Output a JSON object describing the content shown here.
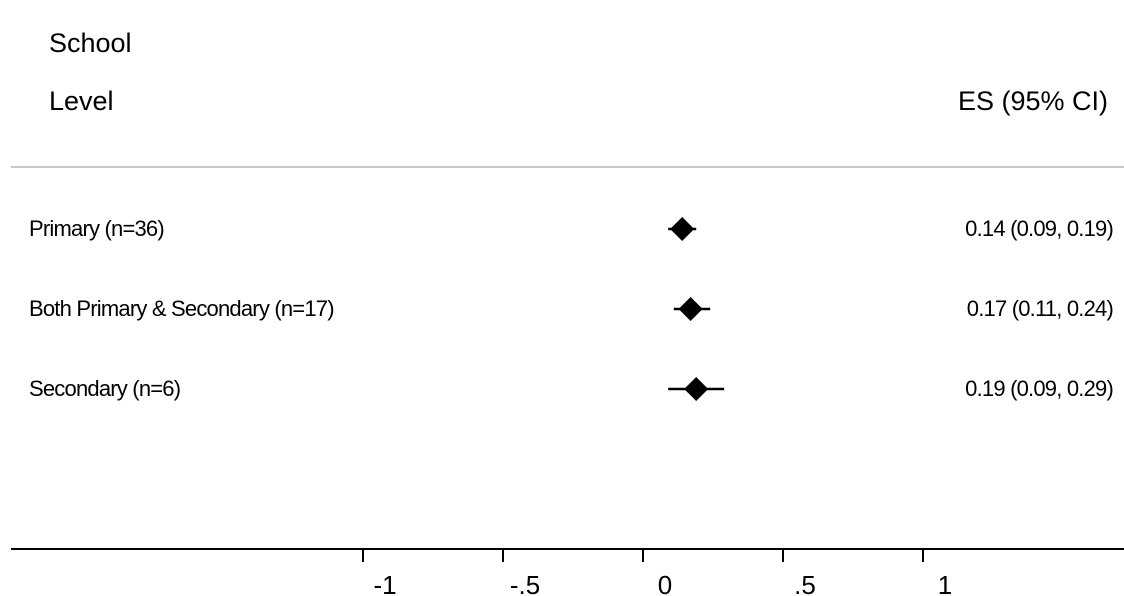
{
  "header": {
    "column_title_line1": "School",
    "column_title_line2": "Level",
    "estimate_title": "ES (95% CI)"
  },
  "chart_data": {
    "type": "forest",
    "xlim": [
      -1.4,
      2.6
    ],
    "x_ticks": [
      -1,
      -0.5,
      0,
      0.5,
      1
    ],
    "x_tick_labels": [
      "-1",
      "-.5",
      "0",
      ".5",
      "1"
    ],
    "rows": [
      {
        "label": "Primary (n=36)",
        "estimate": 0.14,
        "lower": 0.09,
        "upper": 0.19,
        "value_text": "0.14 (0.09, 0.19)"
      },
      {
        "label": "Both Primary & Secondary (n=17)",
        "estimate": 0.17,
        "lower": 0.11,
        "upper": 0.24,
        "value_text": "0.17 (0.11, 0.24)"
      },
      {
        "label": "Secondary (n=6)",
        "estimate": 0.19,
        "lower": 0.09,
        "upper": 0.29,
        "value_text": "0.19 (0.09, 0.29)"
      }
    ],
    "marker": "diamond",
    "colors": {
      "ink": "#000000",
      "separator": "#c8c8c8"
    }
  }
}
